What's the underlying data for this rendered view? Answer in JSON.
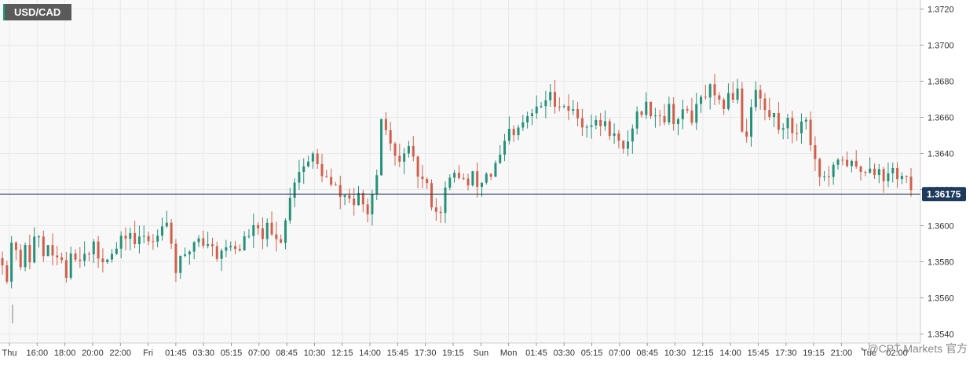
{
  "symbol": "USD/CAD",
  "watermark": "@CPT Markets 官方",
  "colors": {
    "up": "#26917a",
    "down": "#d0604b",
    "grid": "#e9e9e9",
    "plot_bg": "#f8f8f8",
    "last_price_line": "#1e3050",
    "last_price_badge": "#1e3a5c",
    "axis_text": "#333333"
  },
  "chart_data": {
    "type": "candlestick",
    "symbol": "USD/CAD",
    "ylim": [
      1.3535,
      1.3725
    ],
    "y_ticks": [
      "1.3720",
      "1.3700",
      "1.3680",
      "1.3660",
      "1.3640",
      "1.3620",
      "1.3600",
      "1.3580",
      "1.3560",
      "1.3540"
    ],
    "x_ticks": [
      "Thu",
      "16:00",
      "18:00",
      "20:00",
      "22:00",
      "Fri",
      "01:45",
      "03:30",
      "05:15",
      "07:00",
      "08:45",
      "10:30",
      "12:15",
      "14:00",
      "15:45",
      "17:30",
      "19:15",
      "Sun",
      "Mon",
      "01:45",
      "03:30",
      "05:15",
      "07:00",
      "08:45",
      "10:30",
      "12:15",
      "14:00",
      "15:45",
      "17:30",
      "19:15",
      "21:00",
      "Tue",
      "02:00"
    ],
    "last_price": 1.36175,
    "last_price_label": "1.36175",
    "grid": true,
    "candle_path": [
      1.3582,
      1.3568,
      1.36,
      1.357,
      1.3592,
      1.358,
      1.36,
      1.3582,
      1.3592,
      1.3575,
      1.3588,
      1.357,
      1.359,
      1.3578,
      1.359,
      1.3582,
      1.3588,
      1.358,
      1.3585,
      1.3583,
      1.3588,
      1.3592,
      1.3598,
      1.359,
      1.3592,
      1.3595,
      1.359,
      1.3598,
      1.3605,
      1.36,
      1.3575,
      1.358,
      1.3582,
      1.359,
      1.3595,
      1.359,
      1.3592,
      1.3583,
      1.3588,
      1.3586,
      1.359,
      1.3586,
      1.3592,
      1.3596,
      1.3598,
      1.3594,
      1.3598,
      1.3593,
      1.359,
      1.3598,
      1.3618,
      1.3628,
      1.3632,
      1.3635,
      1.3638,
      1.3632,
      1.3628,
      1.3622,
      1.362,
      1.3615,
      1.3618,
      1.3612,
      1.3615,
      1.3608,
      1.3612,
      1.362,
      1.366,
      1.365,
      1.364,
      1.3632,
      1.3645,
      1.3638,
      1.363,
      1.3625,
      1.362,
      1.361,
      1.3606,
      1.362,
      1.3625,
      1.363,
      1.3626,
      1.3622,
      1.3628,
      1.362,
      1.363,
      1.3628,
      1.3635,
      1.364,
      1.3652,
      1.3648,
      1.3655,
      1.3658,
      1.3662,
      1.3664,
      1.3668,
      1.3672,
      1.367,
      1.3668,
      1.3666,
      1.3664,
      1.366,
      1.3656,
      1.3658,
      1.3655,
      1.3657,
      1.3655,
      1.3652,
      1.3646,
      1.364,
      1.365,
      1.366,
      1.3664,
      1.3666,
      1.3664,
      1.3662,
      1.366,
      1.3665,
      1.3658,
      1.366,
      1.3664,
      1.366,
      1.3666,
      1.3672,
      1.3675,
      1.3668,
      1.3665,
      1.367,
      1.3672,
      1.3678,
      1.364,
      1.3666,
      1.3675,
      1.3668,
      1.366,
      1.3662,
      1.3655,
      1.3658,
      1.3655,
      1.365,
      1.3662,
      1.3655,
      1.364,
      1.363,
      1.3625,
      1.3628,
      1.3632,
      1.3638,
      1.3635,
      1.3632,
      1.363,
      1.3632,
      1.3634,
      1.363,
      1.3628,
      1.3626,
      1.3632,
      1.3626,
      1.3628,
      1.3617
    ]
  }
}
